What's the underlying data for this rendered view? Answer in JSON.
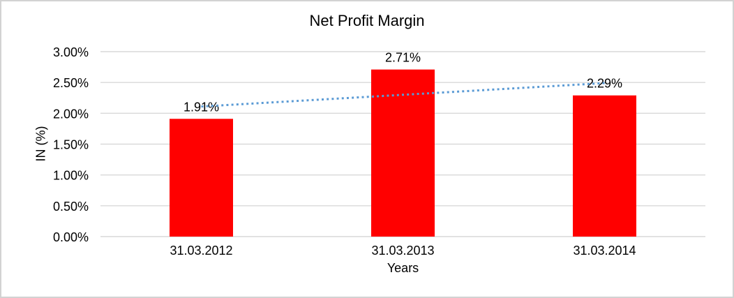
{
  "window": {
    "background": "#FFFFFF",
    "border_color": "#D2D2D2"
  },
  "chart_data": {
    "type": "bar",
    "title": "Net Profit Margin",
    "xlabel": "Years",
    "ylabel": "IN (%)",
    "categories": [
      "31.03.2012",
      "31.03.2013",
      "31.03.2014"
    ],
    "values": [
      1.91,
      2.71,
      2.29
    ],
    "data_labels": [
      "1.91%",
      "2.71%",
      "2.29%"
    ],
    "ylim": [
      0,
      3
    ],
    "y_tick_step": 0.5,
    "y_tick_labels": [
      "0.00%",
      "0.50%",
      "1.00%",
      "1.50%",
      "2.00%",
      "2.50%",
      "3.00%"
    ],
    "grid": true,
    "legend": "none",
    "bar_color": "#FF0000",
    "text_color": "#000000",
    "gridline_color": "#D9D9D9",
    "trendline": {
      "type": "linear",
      "style": "dotted",
      "color": "#5B9BD5",
      "start_value": 2.11,
      "end_value": 2.49
    }
  }
}
